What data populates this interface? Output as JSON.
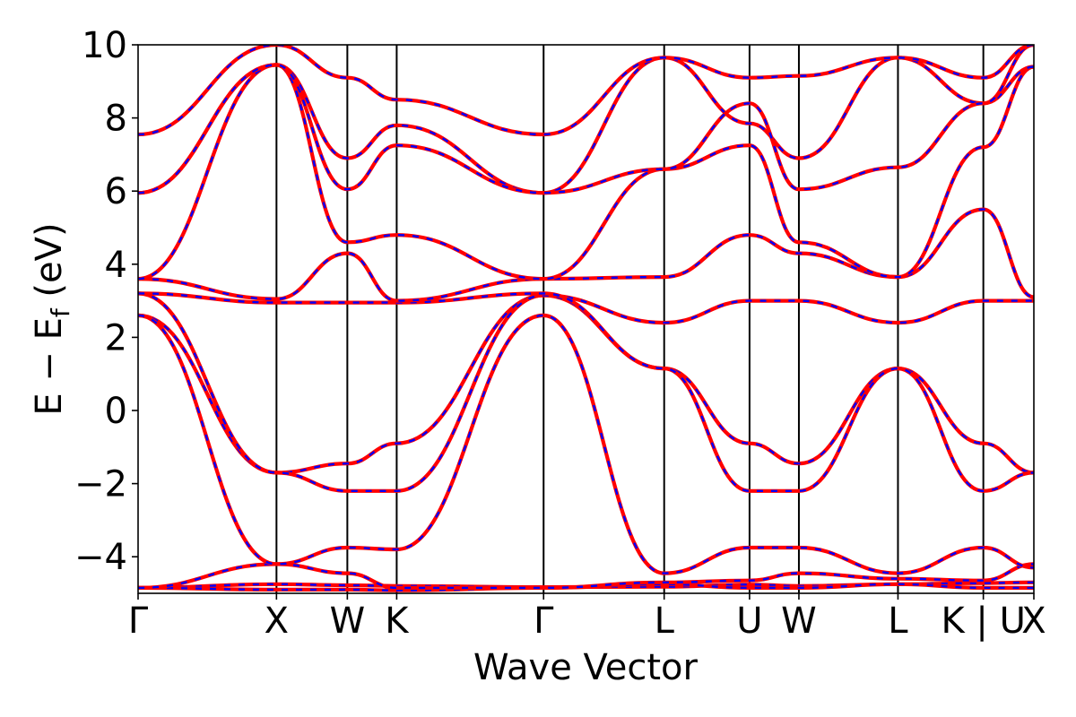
{
  "chart_data": {
    "type": "line",
    "title": "",
    "xlabel": "Wave Vector",
    "ylabel": "E − E",
    "ylabel_sub": "f",
    "ylabel_unit": " (eV)",
    "ylim": [
      -5,
      10
    ],
    "xlim": [
      0,
      1
    ],
    "yticks": [
      -4,
      -2,
      0,
      2,
      4,
      6,
      8,
      10
    ],
    "ytick_labels": [
      "−4",
      "−2",
      "0",
      "2",
      "4",
      "6",
      "8",
      "10"
    ],
    "grid": false,
    "legend": "none",
    "colors": {
      "band": "#ff0000",
      "band_overlay": "#0000ff",
      "kline": "#000000"
    },
    "kpoints": [
      {
        "label": "Γ",
        "x": 0.0
      },
      {
        "label": "X",
        "x": 0.1545
      },
      {
        "label": "W",
        "x": 0.2336
      },
      {
        "label": "K",
        "x": 0.2887
      },
      {
        "label": "Γ",
        "x": 0.4527
      },
      {
        "label": "L",
        "x": 0.5873
      },
      {
        "label": "U",
        "x": 0.6826
      },
      {
        "label": "W",
        "x": 0.7377
      },
      {
        "label": "L",
        "x": 0.8483
      },
      {
        "label": "K | U",
        "x": 0.9436
      },
      {
        "label": "X",
        "x": 1.0
      }
    ],
    "series": [
      {
        "values": [
          [
            0.0,
            -4.85
          ],
          [
            0.1545,
            -4.75
          ],
          [
            0.2336,
            -4.78
          ],
          [
            0.2887,
            -4.8
          ],
          [
            0.4527,
            -4.83
          ],
          [
            0.5873,
            -4.82
          ],
          [
            0.6826,
            -4.76
          ],
          [
            0.7377,
            -4.8
          ],
          [
            0.8483,
            -4.75
          ],
          [
            0.9436,
            -4.72
          ],
          [
            1.0,
            -4.7
          ]
        ]
      },
      {
        "values": [
          [
            0.0,
            -4.85
          ],
          [
            0.1545,
            -4.9
          ],
          [
            0.2336,
            -4.9
          ],
          [
            0.2887,
            -4.92
          ],
          [
            0.4527,
            -4.85
          ],
          [
            0.5873,
            -4.75
          ],
          [
            0.6826,
            -4.85
          ],
          [
            0.7377,
            -4.85
          ],
          [
            0.8483,
            -4.75
          ],
          [
            0.9436,
            -4.85
          ],
          [
            1.0,
            -4.85
          ]
        ]
      },
      {
        "values": [
          [
            0.0,
            -4.85
          ],
          [
            0.1545,
            -4.2
          ],
          [
            0.2336,
            -4.45
          ],
          [
            0.2887,
            -4.85
          ],
          [
            0.4527,
            -4.85
          ],
          [
            0.5873,
            -4.7
          ],
          [
            0.6826,
            -4.65
          ],
          [
            0.7377,
            -4.45
          ],
          [
            0.8483,
            -4.6
          ],
          [
            0.9436,
            -4.65
          ],
          [
            1.0,
            -4.2
          ]
        ]
      },
      {
        "values": [
          [
            0.0,
            2.6
          ],
          [
            0.1545,
            -1.7
          ],
          [
            0.2336,
            -1.45
          ],
          [
            0.2887,
            -0.9
          ],
          [
            0.4527,
            3.15
          ],
          [
            0.5873,
            2.4
          ],
          [
            0.6826,
            3.0
          ],
          [
            0.7377,
            3.0
          ],
          [
            0.8483,
            2.4
          ],
          [
            0.9436,
            3.0
          ],
          [
            1.0,
            3.0
          ]
        ]
      },
      {
        "values": [
          [
            0.0,
            2.6
          ],
          [
            0.1545,
            -4.2
          ],
          [
            0.2336,
            -3.75
          ],
          [
            0.2887,
            -3.8
          ],
          [
            0.4527,
            2.6
          ],
          [
            0.5873,
            -4.45
          ],
          [
            0.6826,
            -3.75
          ],
          [
            0.7377,
            -3.75
          ],
          [
            0.8483,
            -4.45
          ],
          [
            0.9436,
            -3.75
          ],
          [
            1.0,
            -4.3
          ]
        ]
      },
      {
        "values": [
          [
            0.0,
            3.2
          ],
          [
            0.1545,
            -1.7
          ],
          [
            0.2336,
            -2.2
          ],
          [
            0.2887,
            -2.2
          ],
          [
            0.4527,
            3.15
          ],
          [
            0.5873,
            1.15
          ],
          [
            0.6826,
            -0.9
          ],
          [
            0.7377,
            -1.45
          ],
          [
            0.8483,
            1.15
          ],
          [
            0.9436,
            -0.9
          ],
          [
            1.0,
            -1.7
          ]
        ]
      },
      {
        "values": [
          [
            0.0,
            3.2
          ],
          [
            0.1545,
            2.95
          ],
          [
            0.2336,
            2.95
          ],
          [
            0.2887,
            2.95
          ],
          [
            0.4527,
            3.2
          ],
          [
            0.5873,
            1.15
          ],
          [
            0.6826,
            -2.2
          ],
          [
            0.7377,
            -2.2
          ],
          [
            0.8483,
            1.15
          ],
          [
            0.9436,
            -2.2
          ],
          [
            1.0,
            -1.7
          ]
        ]
      },
      {
        "values": [
          [
            0.0,
            3.6
          ],
          [
            0.1545,
            3.05
          ],
          [
            0.2336,
            4.3
          ],
          [
            0.2887,
            3.0
          ],
          [
            0.4527,
            3.6
          ],
          [
            0.5873,
            3.65
          ],
          [
            0.6826,
            4.8
          ],
          [
            0.7377,
            4.3
          ],
          [
            0.8483,
            3.65
          ],
          [
            0.9436,
            5.5
          ],
          [
            1.0,
            3.1
          ]
        ]
      },
      {
        "values": [
          [
            0.0,
            3.6
          ],
          [
            0.1545,
            9.45
          ],
          [
            0.2336,
            4.6
          ],
          [
            0.2887,
            4.8
          ],
          [
            0.4527,
            3.6
          ],
          [
            0.5873,
            6.6
          ],
          [
            0.6826,
            7.25
          ],
          [
            0.7377,
            4.6
          ],
          [
            0.8483,
            3.65
          ],
          [
            0.9436,
            7.2
          ],
          [
            1.0,
            9.4
          ]
        ]
      },
      {
        "values": [
          [
            0.0,
            5.95
          ],
          [
            0.1545,
            9.45
          ],
          [
            0.2336,
            6.9
          ],
          [
            0.2887,
            7.8
          ],
          [
            0.4527,
            5.95
          ],
          [
            0.5873,
            9.65
          ],
          [
            0.6826,
            7.85
          ],
          [
            0.7377,
            6.9
          ],
          [
            0.8483,
            9.65
          ],
          [
            0.9436,
            8.4
          ],
          [
            1.0,
            9.4
          ]
        ]
      },
      {
        "values": [
          [
            0.0,
            5.95
          ],
          [
            0.1545,
            9.45
          ],
          [
            0.2336,
            6.05
          ],
          [
            0.2887,
            7.25
          ],
          [
            0.4527,
            5.95
          ],
          [
            0.5873,
            6.6
          ],
          [
            0.6826,
            8.4
          ],
          [
            0.7377,
            6.05
          ],
          [
            0.8483,
            6.65
          ],
          [
            0.9436,
            8.4
          ],
          [
            1.0,
            10.0
          ]
        ]
      },
      {
        "values": [
          [
            0.0,
            7.55
          ],
          [
            0.1545,
            10.0
          ],
          [
            0.2336,
            9.1
          ],
          [
            0.2887,
            8.5
          ],
          [
            0.4527,
            7.55
          ],
          [
            0.5873,
            9.65
          ],
          [
            0.6826,
            9.1
          ],
          [
            0.7377,
            9.15
          ],
          [
            0.8483,
            9.65
          ],
          [
            0.9436,
            9.1
          ],
          [
            1.0,
            10.0
          ]
        ]
      }
    ]
  }
}
